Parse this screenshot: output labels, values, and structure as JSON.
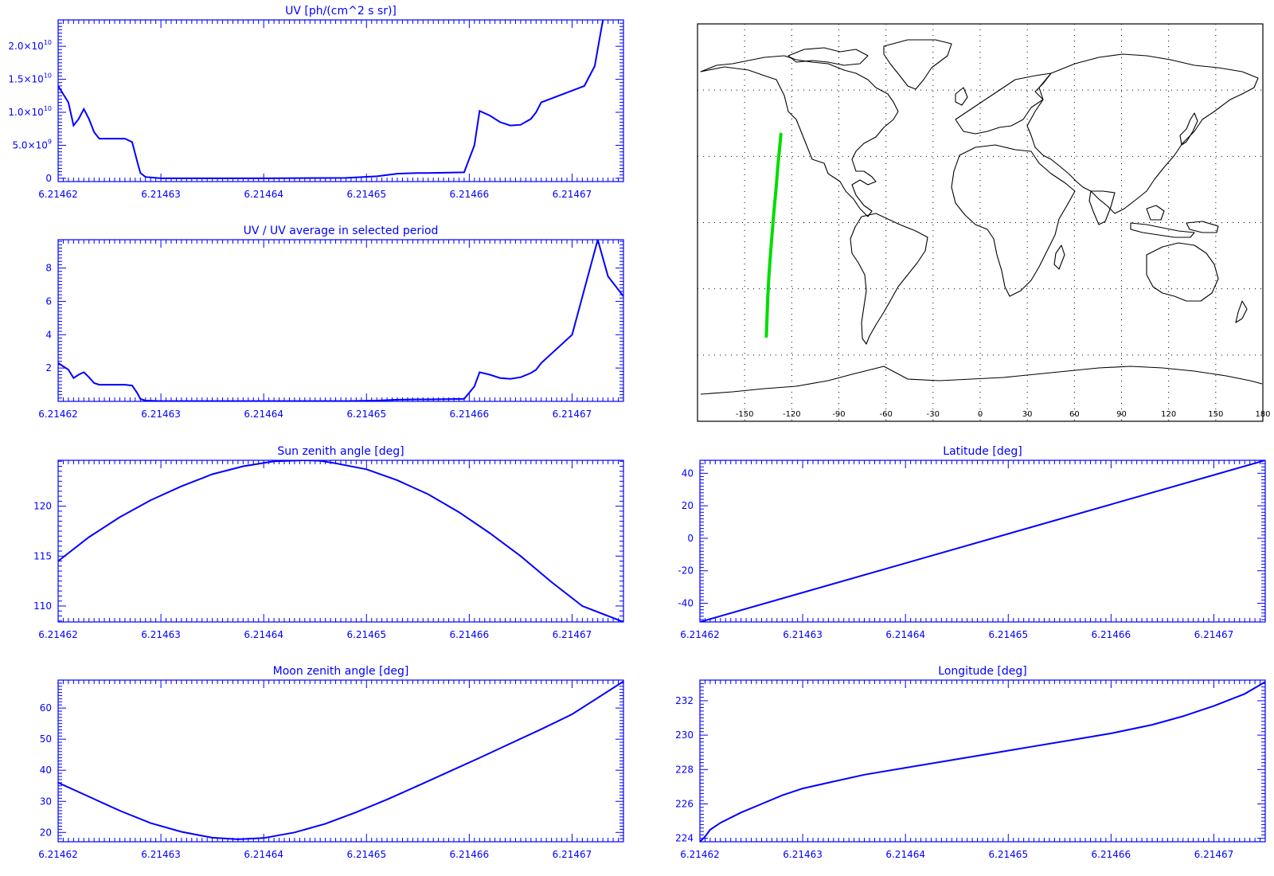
{
  "colors": {
    "plot": "#0000ff",
    "map_frame": "#000000",
    "track": "#00dd00"
  },
  "x_axis_ticks": [
    "6.21462",
    "6.21463",
    "6.21464",
    "6.21465",
    "6.21466",
    "6.21467"
  ],
  "chart_data": [
    {
      "id": "uv",
      "type": "line",
      "title": "UV [ph/(cm^2 s sr)]",
      "xlim": [
        6.21462,
        6.214675
      ],
      "ylim": [
        -500000000,
        24000000000
      ],
      "y_ticks": [
        {
          "value": 0,
          "mant": "0",
          "exp": ""
        },
        {
          "value": 5000000000,
          "mant": "5.0×10",
          "exp": "9"
        },
        {
          "value": 10000000000,
          "mant": "1.0×10",
          "exp": "10"
        },
        {
          "value": 15000000000,
          "mant": "1.5×10",
          "exp": "10"
        },
        {
          "value": 20000000000,
          "mant": "2.0×10",
          "exp": "10"
        }
      ],
      "x": [
        6.21462,
        6.214621,
        6.2146215,
        6.214622,
        6.2146225,
        6.214623,
        6.2146235,
        6.214624,
        6.214625,
        6.2146265,
        6.2146272,
        6.2146277,
        6.214628,
        6.2146285,
        6.21463,
        6.21464,
        6.214648,
        6.214651,
        6.214653,
        6.214655,
        6.214656,
        6.2146595,
        6.2146605,
        6.214661,
        6.214662,
        6.214663,
        6.214664,
        6.214665,
        6.214666,
        6.2146665,
        6.214667,
        6.2146712,
        6.2146722,
        6.214673
      ],
      "y": [
        14000000000,
        11500000000,
        8000000000,
        9000000000,
        10500000000,
        9000000000,
        7000000000,
        6000000000,
        6000000000,
        6000000000,
        5500000000,
        2500000000,
        800000000,
        200000000,
        0,
        0,
        50000000,
        300000000,
        700000000,
        800000000,
        800000000,
        900000000,
        5000000000,
        10200000000,
        9500000000,
        8500000000,
        8000000000,
        8100000000,
        9000000000,
        10000000000,
        11500000000,
        14000000000,
        17000000000,
        24000000000
      ]
    },
    {
      "id": "uv_ratio",
      "type": "line",
      "title": "UV / UV average in selected period",
      "xlim": [
        6.21462,
        6.214675
      ],
      "ylim": [
        0,
        9.7
      ],
      "y_ticks": [
        {
          "value": 2,
          "mant": "2",
          "exp": ""
        },
        {
          "value": 4,
          "mant": "4",
          "exp": ""
        },
        {
          "value": 6,
          "mant": "6",
          "exp": ""
        },
        {
          "value": 8,
          "mant": "8",
          "exp": ""
        }
      ],
      "x": [
        6.21462,
        6.214621,
        6.2146215,
        6.214622,
        6.2146225,
        6.214623,
        6.2146235,
        6.214624,
        6.214625,
        6.2146265,
        6.2146272,
        6.2146277,
        6.214628,
        6.2146285,
        6.21463,
        6.21464,
        6.214648,
        6.214651,
        6.214653,
        6.214655,
        6.214656,
        6.2146595,
        6.2146605,
        6.214661,
        6.214662,
        6.214663,
        6.214664,
        6.214665,
        6.214666,
        6.2146665,
        6.214667,
        6.21467,
        6.2146725,
        6.2146735,
        6.214675
      ],
      "y": [
        2.3,
        1.9,
        1.4,
        1.6,
        1.75,
        1.45,
        1.1,
        1.0,
        1.0,
        1.0,
        0.95,
        0.5,
        0.15,
        0.05,
        0.02,
        0.02,
        0.02,
        0.05,
        0.1,
        0.12,
        0.12,
        0.15,
        0.9,
        1.75,
        1.6,
        1.4,
        1.35,
        1.45,
        1.7,
        1.9,
        2.3,
        4.0,
        9.7,
        7.5,
        6.3
      ]
    },
    {
      "id": "sun_zenith",
      "type": "line",
      "title": "Sun zenith angle [deg]",
      "xlim": [
        6.21462,
        6.214675
      ],
      "ylim": [
        108.4,
        124.6
      ],
      "y_ticks": [
        {
          "value": 110,
          "mant": "110",
          "exp": ""
        },
        {
          "value": 115,
          "mant": "115",
          "exp": ""
        },
        {
          "value": 120,
          "mant": "120",
          "exp": ""
        }
      ],
      "x": [
        6.21462,
        6.214623,
        6.214626,
        6.214629,
        6.214632,
        6.214635,
        6.214638,
        6.214641,
        6.214644,
        6.2146455,
        6.214647,
        6.21465,
        6.214653,
        6.214656,
        6.214659,
        6.214662,
        6.214665,
        6.214668,
        6.214671,
        6.214675
      ],
      "y": [
        114.5,
        116.9,
        118.9,
        120.6,
        122.0,
        123.2,
        124.0,
        124.5,
        124.6,
        124.55,
        124.3,
        123.7,
        122.6,
        121.2,
        119.4,
        117.3,
        115.0,
        112.4,
        110.0,
        108.4
      ]
    },
    {
      "id": "latitude",
      "type": "line",
      "title": "Latitude [deg]",
      "xlim": [
        6.21462,
        6.214675
      ],
      "ylim": [
        -51.5,
        48
      ],
      "y_ticks": [
        {
          "value": -40,
          "mant": "-40",
          "exp": ""
        },
        {
          "value": -20,
          "mant": "-20",
          "exp": ""
        },
        {
          "value": 0,
          "mant": "0",
          "exp": ""
        },
        {
          "value": 20,
          "mant": "20",
          "exp": ""
        },
        {
          "value": 40,
          "mant": "40",
          "exp": ""
        }
      ],
      "x": [
        6.21462,
        6.214675
      ],
      "y": [
        -51.5,
        48
      ]
    },
    {
      "id": "moon_zenith",
      "type": "line",
      "title": "Moon zenith angle [deg]",
      "xlim": [
        6.21462,
        6.214675
      ],
      "ylim": [
        17,
        69
      ],
      "y_ticks": [
        {
          "value": 20,
          "mant": "20",
          "exp": ""
        },
        {
          "value": 30,
          "mant": "30",
          "exp": ""
        },
        {
          "value": 40,
          "mant": "40",
          "exp": ""
        },
        {
          "value": 50,
          "mant": "50",
          "exp": ""
        },
        {
          "value": 60,
          "mant": "60",
          "exp": ""
        }
      ],
      "x": [
        6.21462,
        6.214623,
        6.214626,
        6.214629,
        6.214632,
        6.214635,
        6.2146375,
        6.21464,
        6.214643,
        6.214646,
        6.214649,
        6.214652,
        6.214655,
        6.214658,
        6.214661,
        6.214664,
        6.214667,
        6.21467,
        6.214675
      ],
      "y": [
        36,
        31.5,
        27,
        23,
        20.2,
        18.3,
        17.8,
        18.2,
        20,
        22.8,
        26.5,
        30.6,
        35,
        39.5,
        44,
        48.6,
        53.2,
        58,
        68.6
      ]
    },
    {
      "id": "longitude",
      "type": "line",
      "title": "Longitude [deg]",
      "xlim": [
        6.21462,
        6.214675
      ],
      "ylim": [
        223.8,
        233.2
      ],
      "y_ticks": [
        {
          "value": 224,
          "mant": "224",
          "exp": ""
        },
        {
          "value": 226,
          "mant": "226",
          "exp": ""
        },
        {
          "value": 228,
          "mant": "228",
          "exp": ""
        },
        {
          "value": 230,
          "mant": "230",
          "exp": ""
        },
        {
          "value": 232,
          "mant": "232",
          "exp": ""
        }
      ],
      "x": [
        6.21462,
        6.2146205,
        6.214621,
        6.214622,
        6.214624,
        6.214626,
        6.214628,
        6.21463,
        6.214633,
        6.214636,
        6.21464,
        6.214644,
        6.214648,
        6.214652,
        6.214656,
        6.21466,
        6.214664,
        6.214667,
        6.21467,
        6.214673,
        6.214675
      ],
      "y": [
        223.8,
        224.1,
        224.5,
        224.9,
        225.5,
        226.0,
        226.5,
        226.9,
        227.3,
        227.7,
        228.1,
        228.5,
        228.9,
        229.3,
        229.7,
        230.1,
        230.6,
        231.1,
        231.7,
        232.4,
        233.1
      ]
    }
  ],
  "map": {
    "lon_ticks": [
      "-150",
      "-120",
      "-90",
      "-60",
      "-30",
      "0",
      "30",
      "60",
      "90",
      "120",
      "150",
      "180"
    ],
    "lon_values": [
      -150,
      -120,
      -90,
      -60,
      -30,
      0,
      30,
      60,
      90,
      120,
      150,
      180
    ],
    "lonlim": [
      -180,
      180
    ],
    "latlim": [
      -90,
      90
    ],
    "grid": "dotted",
    "track_lon": [
      -136.2,
      -135.8,
      -135.3,
      -134.5,
      -133.5,
      -132.4,
      -131.2,
      -129.9,
      -128.8,
      -127.4,
      -126.9
    ],
    "track_lat": [
      -51.5,
      -44,
      -34,
      -24,
      -14,
      -4,
      6,
      16,
      26,
      36,
      40
    ]
  }
}
